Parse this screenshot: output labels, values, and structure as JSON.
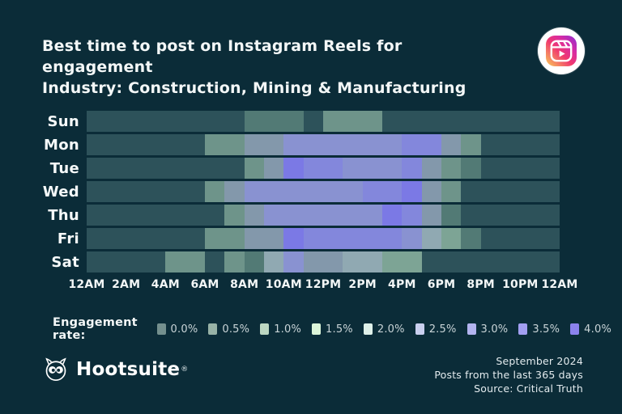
{
  "header": {
    "title_line1": "Best time to post on Instagram Reels for engagement",
    "title_line2": "Industry: Construction, Mining & Manufacturing",
    "icon": "instagram-reels-icon"
  },
  "chart_data": {
    "type": "heatmap",
    "title": "Best time to post on Instagram Reels for engagement",
    "subtitle": "Industry: Construction, Mining & Manufacturing",
    "x_unit": "hour of day",
    "x_tick_labels": [
      "12AM",
      "2AM",
      "4AM",
      "6AM",
      "8AM",
      "10AM",
      "12PM",
      "2PM",
      "4PM",
      "6PM",
      "8PM",
      "10PM",
      "12AM"
    ],
    "y_tick_labels": [
      "Sun",
      "Mon",
      "Tue",
      "Wed",
      "Thu",
      "Fri",
      "Sat"
    ],
    "value_unit": "engagement rate %",
    "series": [
      {
        "name": "Sun",
        "values": [
          0,
          0,
          0,
          0,
          0,
          0,
          0,
          0,
          0.5,
          0.5,
          0.5,
          0,
          1,
          1,
          1,
          0,
          0,
          0,
          0,
          0,
          0,
          0,
          0,
          0
        ]
      },
      {
        "name": "Mon",
        "values": [
          0,
          0,
          0,
          0,
          0,
          0,
          1,
          1,
          2.5,
          2.5,
          3,
          3,
          3,
          3,
          3,
          3,
          3.5,
          3.5,
          2.5,
          1,
          0,
          0,
          0,
          0
        ]
      },
      {
        "name": "Tue",
        "values": [
          0,
          0,
          0,
          0,
          0,
          0,
          0,
          0,
          1,
          2.5,
          4,
          3.5,
          3.5,
          3,
          3,
          3,
          3.5,
          2.5,
          1,
          0.5,
          0,
          0,
          0,
          0
        ]
      },
      {
        "name": "Wed",
        "values": [
          0,
          0,
          0,
          0,
          0,
          0,
          1,
          2.5,
          3,
          3,
          3,
          3,
          3,
          3,
          3.5,
          3.5,
          4,
          2.5,
          1,
          0,
          0,
          0,
          0,
          0
        ]
      },
      {
        "name": "Thu",
        "values": [
          0,
          0,
          0,
          0,
          0,
          0,
          0,
          1,
          2.5,
          3,
          3,
          3,
          3,
          3,
          3,
          4,
          3.5,
          2.5,
          0.5,
          0,
          0,
          0,
          0,
          0
        ]
      },
      {
        "name": "Fri",
        "values": [
          0,
          0,
          0,
          0,
          0,
          0,
          1,
          1,
          2.5,
          2.5,
          4,
          3.5,
          3.5,
          3.5,
          3.5,
          3.5,
          3,
          2,
          1.5,
          0.5,
          0,
          0,
          0,
          0
        ]
      },
      {
        "name": "Sat",
        "values": [
          0,
          0,
          0,
          0,
          1,
          1,
          0,
          1,
          0.5,
          2,
          3,
          2.5,
          2.5,
          2,
          2,
          1.5,
          1.5,
          0,
          0,
          0,
          0,
          0,
          0,
          0
        ]
      }
    ],
    "legend": {
      "label": "Engagement rate:",
      "entries": [
        {
          "label": "0.0%",
          "value": 0.0,
          "color": "#74908e"
        },
        {
          "label": "0.5%",
          "value": 0.5,
          "color": "#97b2a6"
        },
        {
          "label": "1.0%",
          "value": 1.0,
          "color": "#bcd7c2"
        },
        {
          "label": "1.5%",
          "value": 1.5,
          "color": "#dcf5d9"
        },
        {
          "label": "2.0%",
          "value": 2.0,
          "color": "#def0e9"
        },
        {
          "label": "2.5%",
          "value": 2.5,
          "color": "#c9cfee"
        },
        {
          "label": "3.0%",
          "value": 3.0,
          "color": "#b3b4ef"
        },
        {
          "label": "3.5%",
          "value": 3.5,
          "color": "#a29ff1"
        },
        {
          "label": "4.0%",
          "value": 4.0,
          "color": "#8b82ed"
        }
      ],
      "position": "bottom"
    },
    "cell_palette": {
      "0.0": "#2d525a",
      "0.5": "#527a75",
      "1.0": "#6e948a",
      "1.5": "#7da495",
      "2.0": "#90a9b2",
      "2.5": "#8398ab",
      "3.0": "#8992d1",
      "3.5": "#8387dc",
      "4.0": "#7b79e5"
    },
    "grid": "off"
  },
  "footer": {
    "brand": "Hootsuite",
    "registered_mark": "®",
    "owl_icon": "hootsuite-owl-icon",
    "meta_line1": "September 2024",
    "meta_line2": "Posts from the last 365 days",
    "meta_line3": "Source: Critical Truth"
  },
  "colors": {
    "background": "#0b2c38",
    "title_text": "#f3f7f7",
    "axis_text": "#f2f6f6",
    "legend_text": "#c9d4d7",
    "footer_text": "#e3ebee",
    "reels_gradient": [
      "#f9ce58",
      "#f03a6e",
      "#d92ba2",
      "#8d2fd6"
    ]
  }
}
